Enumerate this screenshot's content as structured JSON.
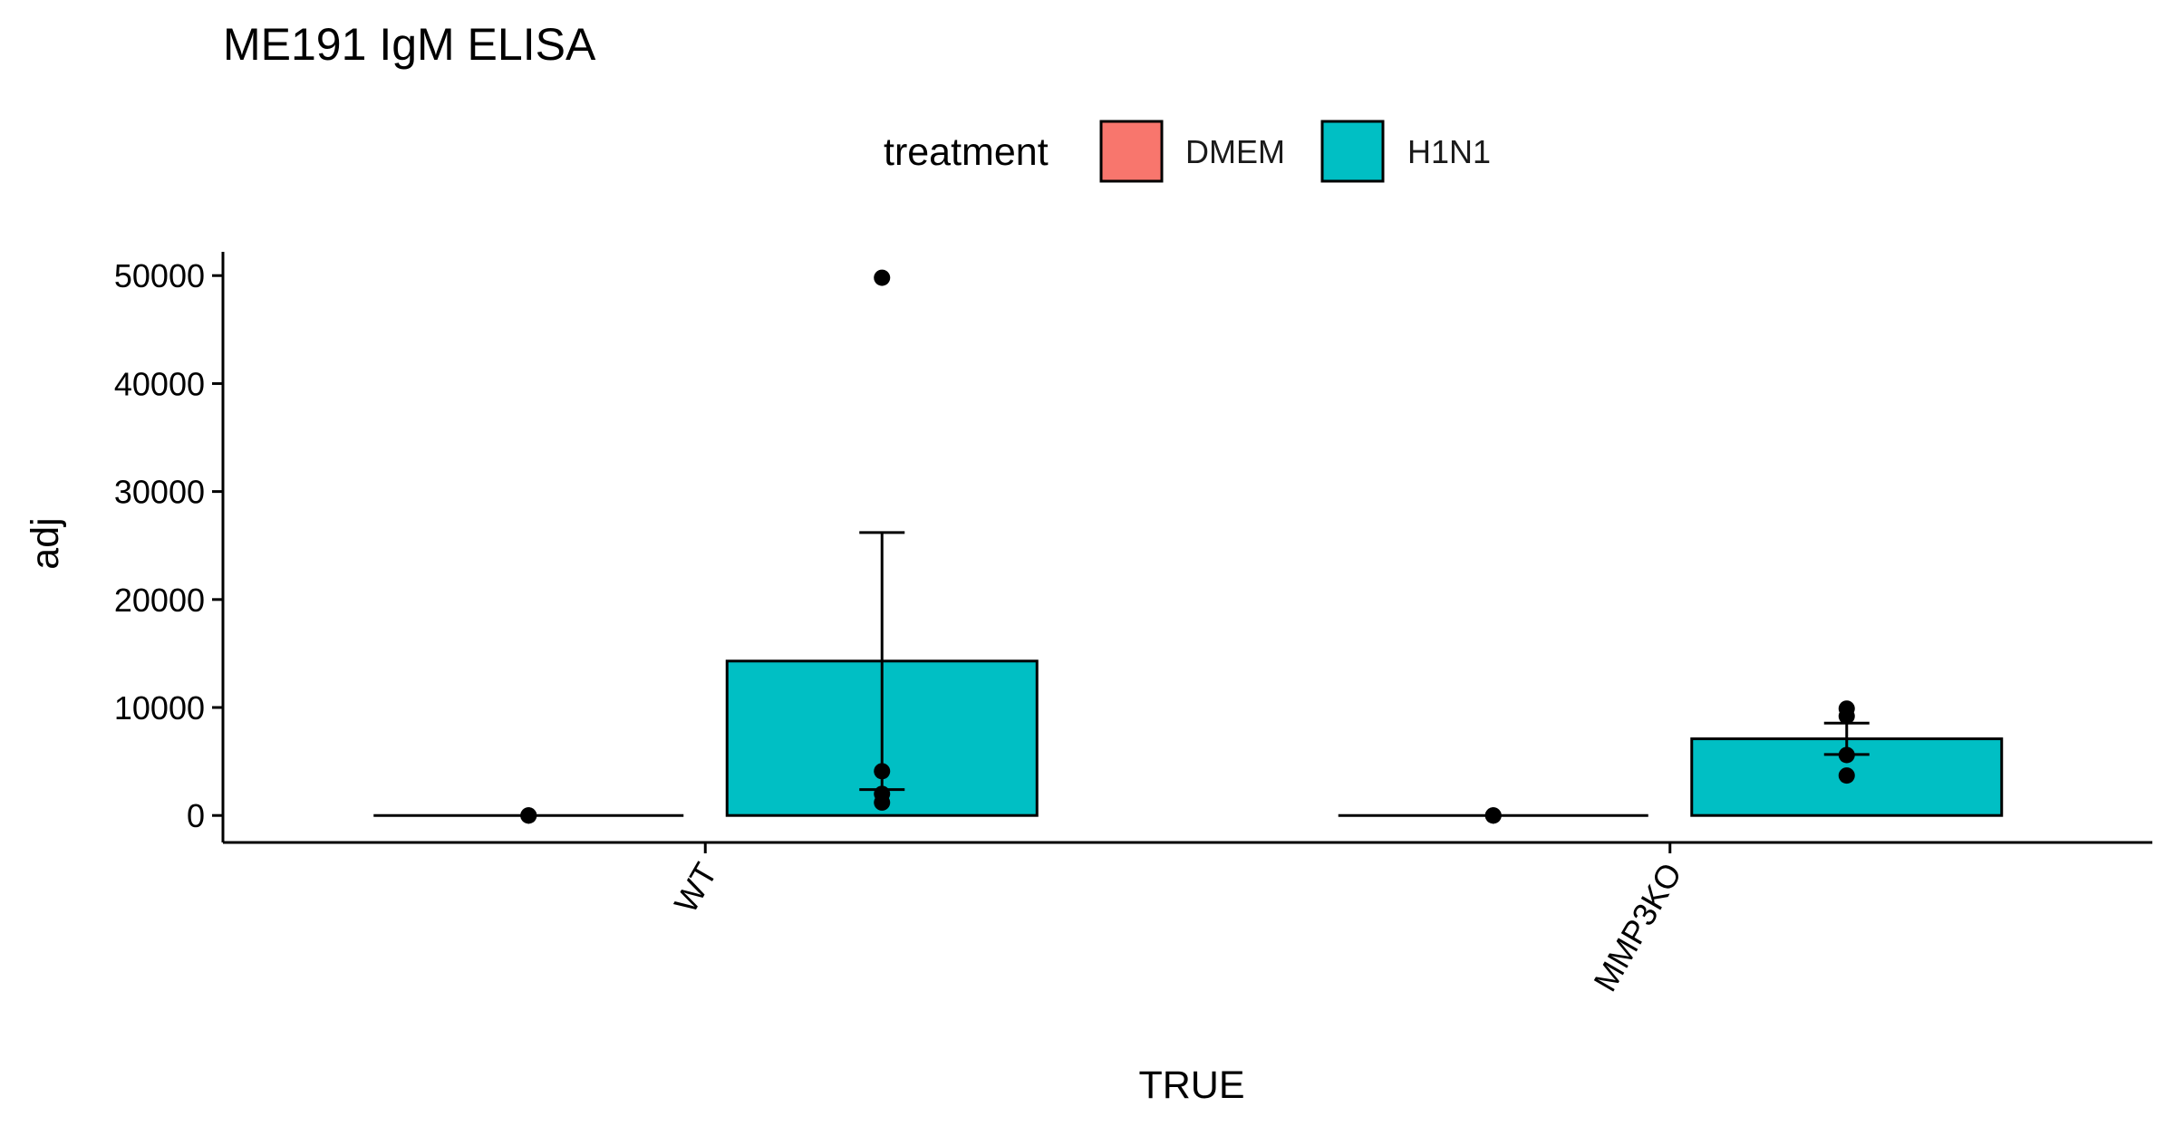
{
  "chart_data": {
    "type": "bar",
    "title": "ME191 IgM ELISA",
    "xlabel": "TRUE",
    "ylabel": "adj",
    "categories": [
      "WT",
      "MMP3KO"
    ],
    "ylim": [
      -2500,
      52200
    ],
    "yticks": [
      0,
      10000,
      20000,
      30000,
      40000,
      50000
    ],
    "yticklabels": [
      "0",
      "10000",
      "20000",
      "30000",
      "40000",
      "50000"
    ],
    "legend": {
      "title": "treatment",
      "position": "top"
    },
    "grid": false,
    "series": [
      {
        "name": "DMEM",
        "color": "#F8766D",
        "values": [
          0,
          0
        ],
        "errors": [
          0,
          0
        ],
        "points": [
          [
            0,
            0,
            0
          ],
          [
            0,
            0,
            0
          ]
        ]
      },
      {
        "name": "H1N1",
        "color": "#00BFC4",
        "values": [
          14300,
          7100
        ],
        "errors": [
          11900,
          1450
        ],
        "points": [
          [
            49800,
            4100,
            1200,
            2000
          ],
          [
            9900,
            9200,
            5600,
            3700
          ]
        ]
      }
    ]
  }
}
